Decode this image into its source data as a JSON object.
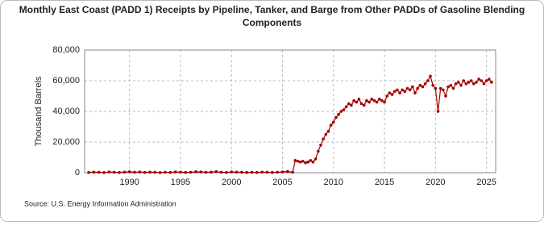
{
  "chart_data": {
    "type": "line",
    "title": "Monthly East Coast (PADD 1) Receipts by Pipeline, Tanker, and Barge from Other PADDs of Gasoline Blending Components",
    "y_label": "Thousand Barrels",
    "source": "Source: U.S. Energy Information Administration",
    "grid": true,
    "x": [
      1986,
      1986.5,
      1987,
      1987.5,
      1988,
      1988.5,
      1989,
      1989.5,
      1990,
      1990.5,
      1991,
      1991.5,
      1992,
      1992.5,
      1993,
      1993.5,
      1994,
      1994.5,
      1995,
      1995.5,
      1996,
      1996.5,
      1997,
      1997.5,
      1998,
      1998.5,
      1999,
      1999.5,
      2000,
      2000.5,
      2001,
      2001.5,
      2002,
      2002.5,
      2003,
      2003.5,
      2004,
      2004.5,
      2005,
      2005.5,
      2006,
      2006.25,
      2006.5,
      2006.75,
      2007,
      2007.25,
      2007.5,
      2007.75,
      2008,
      2008.25,
      2008.5,
      2008.75,
      2009,
      2009.25,
      2009.5,
      2009.75,
      2010,
      2010.25,
      2010.5,
      2010.75,
      2011,
      2011.25,
      2011.5,
      2011.75,
      2012,
      2012.25,
      2012.5,
      2012.75,
      2013,
      2013.25,
      2013.5,
      2013.75,
      2014,
      2014.25,
      2014.5,
      2014.75,
      2015,
      2015.25,
      2015.5,
      2015.75,
      2016,
      2016.25,
      2016.5,
      2016.75,
      2017,
      2017.25,
      2017.5,
      2017.75,
      2018,
      2018.25,
      2018.5,
      2018.75,
      2019,
      2019.25,
      2019.5,
      2019.75,
      2020,
      2020.25,
      2020.5,
      2020.75,
      2021,
      2021.25,
      2021.5,
      2021.75,
      2022,
      2022.25,
      2022.5,
      2022.75,
      2023,
      2023.25,
      2023.5,
      2023.75,
      2024,
      2024.25,
      2024.5,
      2024.75,
      2025,
      2025.25,
      2025.5
    ],
    "series": [
      {
        "name": "Receipts",
        "color": "#a50000",
        "values": [
          200,
          400,
          300,
          100,
          500,
          300,
          200,
          400,
          600,
          300,
          500,
          200,
          400,
          300,
          100,
          300,
          200,
          500,
          400,
          200,
          300,
          600,
          500,
          300,
          400,
          700,
          300,
          200,
          500,
          400,
          300,
          200,
          300,
          200,
          400,
          300,
          200,
          300,
          500,
          800,
          300,
          8000,
          7500,
          7000,
          7500,
          6500,
          7000,
          8000,
          7000,
          9000,
          14000,
          18000,
          22000,
          25000,
          27000,
          31000,
          33000,
          36000,
          38000,
          40000,
          41000,
          43000,
          45000,
          44000,
          47000,
          46000,
          48000,
          45000,
          44000,
          47000,
          46000,
          48000,
          47000,
          46000,
          48000,
          47000,
          46000,
          50000,
          52000,
          51000,
          53000,
          54000,
          52000,
          54000,
          53000,
          55000,
          54000,
          56000,
          52000,
          55000,
          57000,
          56000,
          58000,
          60000,
          63000,
          57000,
          55000,
          40000,
          55000,
          54000,
          50000,
          56000,
          57000,
          55000,
          58000,
          59000,
          57000,
          60000,
          58000,
          59000,
          60000,
          58000,
          59000,
          61000,
          60000,
          58000,
          60000,
          61000,
          59000
        ]
      }
    ],
    "xlim": [
      1985.6,
      2025.9
    ],
    "xticks": [
      1990,
      1995,
      2000,
      2005,
      2010,
      2015,
      2020,
      2025
    ],
    "ylim": [
      0,
      80000
    ],
    "yticks": [
      {
        "value": 0,
        "label": "0"
      },
      {
        "value": 20000,
        "label": "20,000"
      },
      {
        "value": 40000,
        "label": "40,000"
      },
      {
        "value": 60000,
        "label": "60,000"
      },
      {
        "value": 80000,
        "label": "80,000"
      }
    ]
  }
}
